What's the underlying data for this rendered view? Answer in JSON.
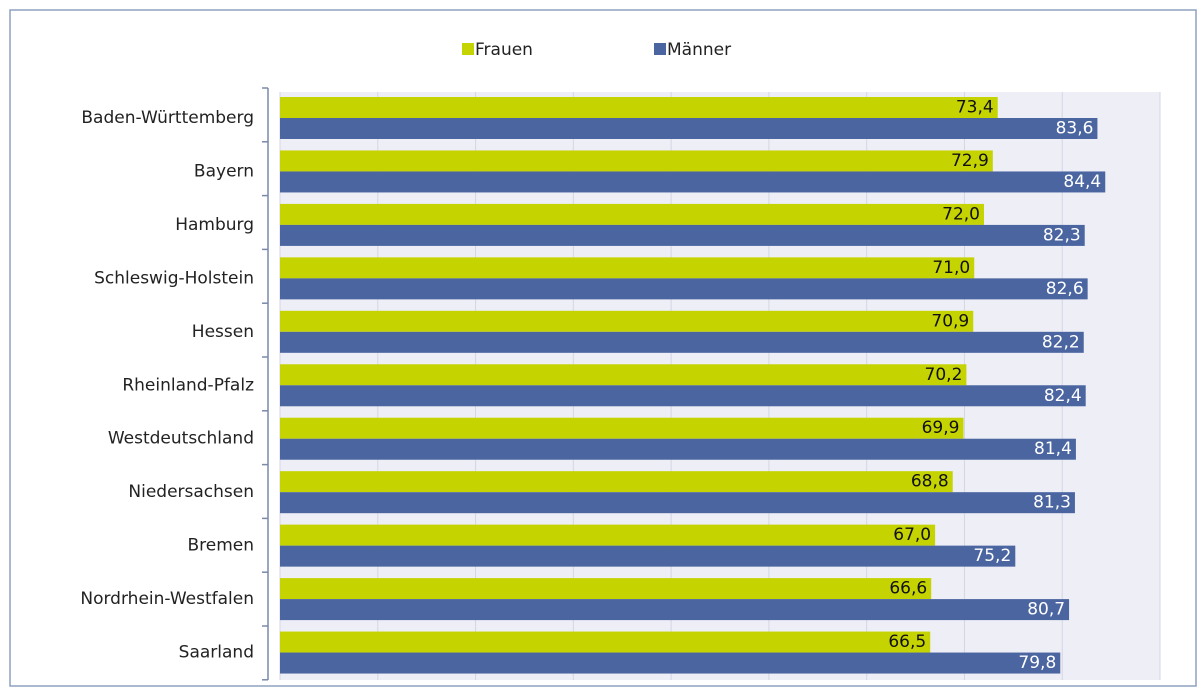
{
  "chart_data": {
    "type": "hbar",
    "categories": [
      "Baden-Württemberg",
      "Bayern",
      "Hamburg",
      "Schleswig-Holstein",
      "Hessen",
      "Rheinland-Pfalz",
      "Westdeutschland",
      "Niedersachsen",
      "Bremen",
      "Nordrhein-Westfalen",
      "Saarland"
    ],
    "series": [
      {
        "name": "Frauen",
        "color": "#c5d300",
        "values": [
          73.4,
          72.9,
          72.0,
          71.0,
          70.9,
          70.2,
          69.9,
          68.8,
          67.0,
          66.6,
          66.5
        ],
        "value_labels": [
          "73,4",
          "72,9",
          "72,0",
          "71,0",
          "70,9",
          "70,2",
          "69,9",
          "68,8",
          "67,0",
          "66,6",
          "66,5"
        ]
      },
      {
        "name": "Männer",
        "color": "#4a65a0",
        "values": [
          83.6,
          84.4,
          82.3,
          82.6,
          82.2,
          82.4,
          81.4,
          81.3,
          75.2,
          80.7,
          79.8
        ],
        "value_labels": [
          "83,6",
          "84,4",
          "82,3",
          "82,6",
          "82,2",
          "82,4",
          "81,4",
          "81,3",
          "75,2",
          "80,7",
          "79,8"
        ]
      }
    ],
    "xlim": [
      0,
      90
    ],
    "xticks": [
      0,
      10,
      20,
      30,
      40,
      50,
      60,
      70,
      80,
      90
    ],
    "grid": true,
    "legend": "top"
  }
}
